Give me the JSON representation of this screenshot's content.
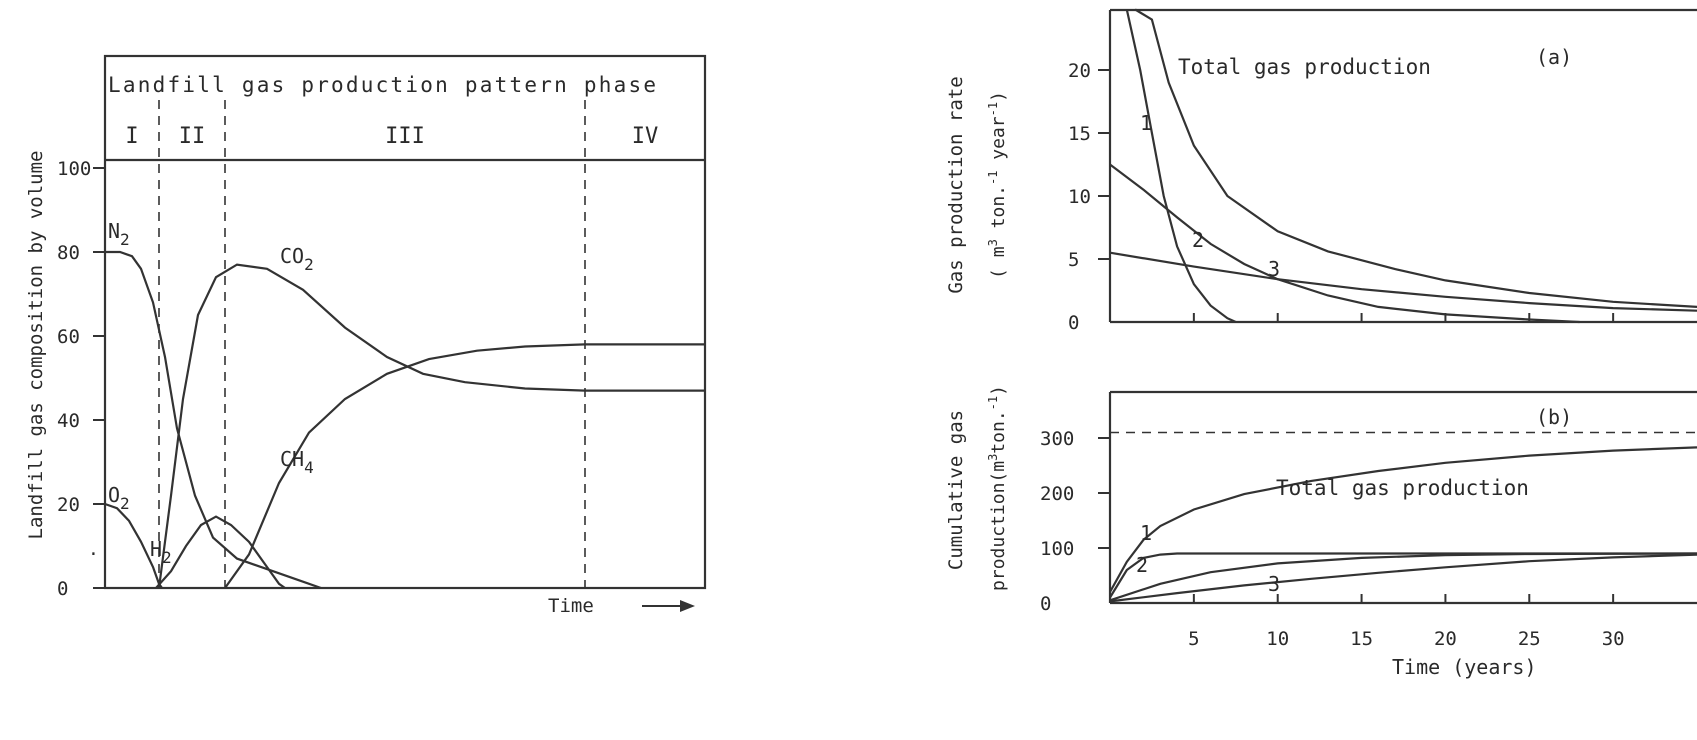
{
  "chart_data": [
    {
      "type": "line",
      "panel": "left",
      "title": "Landfill gas production pattern phase",
      "ylabel": "Landfill gas composition by volume",
      "xlabel": "Time",
      "ylim": [
        0,
        100
      ],
      "y_ticks": [
        "0",
        "20",
        "40",
        "60",
        "80",
        "100"
      ],
      "phases": [
        {
          "label": "I",
          "x": [
            0,
            0.9
          ]
        },
        {
          "label": "II",
          "x": [
            0.9,
            2.0
          ]
        },
        {
          "label": "III",
          "x": [
            2.0,
            8.0
          ]
        },
        {
          "label": "IV",
          "x": [
            8.0,
            10.0
          ]
        }
      ],
      "xlim": [
        0,
        10
      ],
      "series": [
        {
          "name": "N2",
          "label": "N",
          "sub": "2",
          "points": [
            [
              0,
              80
            ],
            [
              0.25,
              80
            ],
            [
              0.45,
              79
            ],
            [
              0.6,
              76
            ],
            [
              0.8,
              68
            ],
            [
              1.0,
              55
            ],
            [
              1.2,
              38
            ],
            [
              1.5,
              22
            ],
            [
              1.8,
              12
            ],
            [
              2.2,
              7
            ],
            [
              2.8,
              4
            ],
            [
              3.3,
              1.5
            ],
            [
              3.6,
              0
            ]
          ]
        },
        {
          "name": "O2",
          "label": "O",
          "sub": "2",
          "points": [
            [
              0,
              20
            ],
            [
              0.2,
              19
            ],
            [
              0.4,
              16
            ],
            [
              0.6,
              11
            ],
            [
              0.8,
              5
            ],
            [
              0.9,
              1
            ],
            [
              0.95,
              0
            ]
          ]
        },
        {
          "name": "H2",
          "label": "H",
          "sub": "2",
          "points": [
            [
              0.85,
              0
            ],
            [
              1.1,
              4
            ],
            [
              1.35,
              10
            ],
            [
              1.6,
              15
            ],
            [
              1.85,
              17
            ],
            [
              2.1,
              15
            ],
            [
              2.4,
              11
            ],
            [
              2.7,
              5
            ],
            [
              2.9,
              1
            ],
            [
              3.0,
              0
            ]
          ]
        },
        {
          "name": "CO2",
          "label": "CO",
          "sub": "2",
          "points": [
            [
              0.9,
              0
            ],
            [
              1.1,
              22
            ],
            [
              1.3,
              45
            ],
            [
              1.55,
              65
            ],
            [
              1.85,
              74
            ],
            [
              2.2,
              77
            ],
            [
              2.7,
              76
            ],
            [
              3.3,
              71
            ],
            [
              4.0,
              62
            ],
            [
              4.7,
              55
            ],
            [
              5.3,
              51
            ],
            [
              6.0,
              49
            ],
            [
              7.0,
              47.5
            ],
            [
              8.0,
              47
            ],
            [
              10.0,
              47
            ]
          ]
        },
        {
          "name": "CH4",
          "label": "CH",
          "sub": "4",
          "points": [
            [
              2.0,
              0
            ],
            [
              2.4,
              8
            ],
            [
              2.9,
              25
            ],
            [
              3.4,
              37
            ],
            [
              4.0,
              45
            ],
            [
              4.7,
              51
            ],
            [
              5.4,
              54.5
            ],
            [
              6.2,
              56.5
            ],
            [
              7.0,
              57.5
            ],
            [
              8.0,
              58
            ],
            [
              10.0,
              58
            ]
          ]
        }
      ]
    },
    {
      "type": "line",
      "panel": "(a)",
      "title": "(a)",
      "annotation": "Total gas production",
      "ylabel": "Gas production rate",
      "ylabel2": "( m3 ton.-1 year-1)",
      "xlim": [
        0,
        35
      ],
      "ylim": [
        0,
        25
      ],
      "y_ticks": [
        "0",
        "5",
        "10",
        "15",
        "20"
      ],
      "series": [
        {
          "name": "Total gas production",
          "points": [
            [
              1.5,
              25
            ],
            [
              2.5,
              24
            ],
            [
              3.5,
              19
            ],
            [
              5,
              14
            ],
            [
              7,
              10
            ],
            [
              10,
              7.2
            ],
            [
              13,
              5.6
            ],
            [
              17,
              4.2
            ],
            [
              20,
              3.3
            ],
            [
              25,
              2.3
            ],
            [
              30,
              1.6
            ],
            [
              35,
              1.2
            ]
          ]
        },
        {
          "name": "1",
          "label": "1",
          "points": [
            [
              1.0,
              25
            ],
            [
              1.8,
              20
            ],
            [
              2.5,
              15
            ],
            [
              3.2,
              10
            ],
            [
              4,
              6
            ],
            [
              5,
              3
            ],
            [
              6,
              1.3
            ],
            [
              7,
              0.3
            ],
            [
              7.5,
              0
            ]
          ]
        },
        {
          "name": "2",
          "label": "2",
          "points": [
            [
              0,
              12.5
            ],
            [
              2,
              10.5
            ],
            [
              4,
              8.3
            ],
            [
              6,
              6.2
            ],
            [
              8,
              4.6
            ],
            [
              10,
              3.4
            ],
            [
              13,
              2.1
            ],
            [
              16,
              1.2
            ],
            [
              20,
              0.6
            ],
            [
              25,
              0.2
            ],
            [
              28,
              0
            ]
          ]
        },
        {
          "name": "3",
          "label": "3",
          "points": [
            [
              0,
              5.5
            ],
            [
              5,
              4.4
            ],
            [
              10,
              3.4
            ],
            [
              15,
              2.6
            ],
            [
              20,
              2.0
            ],
            [
              25,
              1.5
            ],
            [
              30,
              1.1
            ],
            [
              35,
              0.9
            ]
          ]
        }
      ]
    },
    {
      "type": "line",
      "panel": "(b)",
      "title": "(b)",
      "annotation": "Total gas production",
      "ylabel": "Cumulative gas",
      "ylabel2": "production(m3ton.-1)",
      "xlabel": "Time (years)",
      "xlim": [
        0,
        35
      ],
      "ylim": [
        0,
        370
      ],
      "y_ticks": [
        "0",
        "100",
        "200",
        "300"
      ],
      "x_ticks": [
        "5",
        "10",
        "15",
        "20",
        "25",
        "30"
      ],
      "asymptote": 310,
      "series": [
        {
          "name": "Total gas production",
          "points": [
            [
              0,
              20
            ],
            [
              1,
              75
            ],
            [
              2,
              115
            ],
            [
              3,
              140
            ],
            [
              5,
              170
            ],
            [
              8,
              198
            ],
            [
              12,
              222
            ],
            [
              16,
              240
            ],
            [
              20,
              255
            ],
            [
              25,
              268
            ],
            [
              30,
              277
            ],
            [
              35,
              283
            ]
          ]
        },
        {
          "name": "1",
          "label": "1",
          "points": [
            [
              0,
              10
            ],
            [
              1,
              60
            ],
            [
              2,
              82
            ],
            [
              3,
              88
            ],
            [
              4,
              90
            ],
            [
              8,
              90
            ],
            [
              35,
              90
            ]
          ]
        },
        {
          "name": "2",
          "label": "2",
          "points": [
            [
              0,
              5
            ],
            [
              3,
              35
            ],
            [
              6,
              56
            ],
            [
              10,
              72
            ],
            [
              15,
              82
            ],
            [
              20,
              87
            ],
            [
              25,
              89
            ],
            [
              35,
              90
            ]
          ]
        },
        {
          "name": "3",
          "label": "3",
          "points": [
            [
              0,
              3
            ],
            [
              4,
              18
            ],
            [
              8,
              32
            ],
            [
              12,
              44
            ],
            [
              16,
              55
            ],
            [
              20,
              65
            ],
            [
              25,
              76
            ],
            [
              30,
              83
            ],
            [
              35,
              88
            ]
          ]
        }
      ]
    }
  ]
}
